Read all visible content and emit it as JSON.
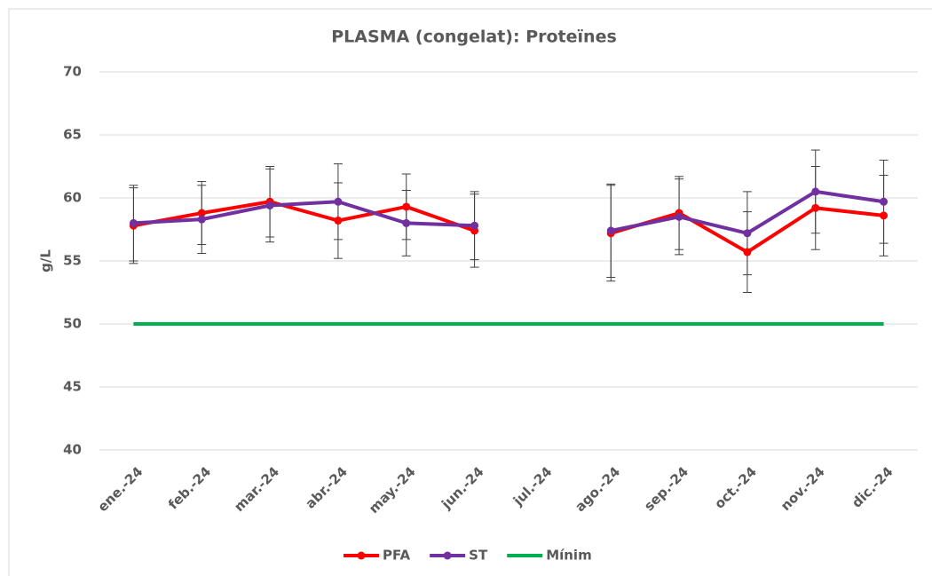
{
  "chart_data": {
    "type": "line",
    "title": "PLASMA (congelat): Proteïnes",
    "y_label": "g/L",
    "categories": [
      "ene.-24",
      "feb.-24",
      "mar.-24",
      "abr.-24",
      "may.-24",
      "jun.-24",
      "jul.-24",
      "ago.-24",
      "sep.-24",
      "oct.-24",
      "nov.-24",
      "dic.-24"
    ],
    "series": [
      {
        "name": "PFA",
        "color": "#ff0000",
        "markers": true,
        "values": [
          57.8,
          58.8,
          59.7,
          58.2,
          59.3,
          57.4,
          null,
          57.2,
          58.8,
          55.7,
          59.2,
          58.6
        ],
        "errors": [
          3.0,
          2.5,
          2.8,
          3.0,
          2.6,
          2.9,
          null,
          3.8,
          2.9,
          3.2,
          3.3,
          3.2
        ]
      },
      {
        "name": "ST",
        "color": "#7030a0",
        "markers": true,
        "values": [
          58.0,
          58.3,
          59.4,
          59.7,
          58.0,
          57.8,
          null,
          57.4,
          58.5,
          57.2,
          60.5,
          59.7
        ],
        "errors": [
          3.0,
          2.7,
          2.9,
          3.0,
          2.6,
          2.7,
          null,
          3.7,
          3.0,
          3.3,
          3.3,
          3.3
        ]
      },
      {
        "name": "Mínim",
        "color": "#00b050",
        "markers": false,
        "values": [
          50,
          50,
          50,
          50,
          50,
          50,
          50,
          50,
          50,
          50,
          50,
          50
        ]
      }
    ],
    "ylim": [
      40,
      70
    ],
    "yticks": [
      40,
      45,
      50,
      55,
      60,
      65,
      70
    ],
    "grid": true,
    "legend": "bottom"
  }
}
